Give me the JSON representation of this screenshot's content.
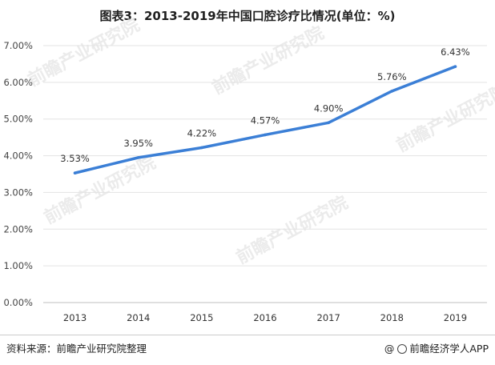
{
  "chart_data": {
    "type": "line",
    "title": "图表3：2013-2019年中国口腔诊疗比情况(单位：%)",
    "categories": [
      "2013",
      "2014",
      "2015",
      "2016",
      "2017",
      "2018",
      "2019"
    ],
    "series": [
      {
        "values": [
          3.53,
          3.95,
          4.22,
          4.57,
          4.9,
          5.76,
          6.43
        ],
        "labels": [
          "3.53%",
          "3.95%",
          "4.22%",
          "4.57%",
          "4.90%",
          "5.76%",
          "6.43%"
        ]
      }
    ],
    "ylim": [
      0,
      7
    ],
    "yticks": [
      "0.00%",
      "1.00%",
      "2.00%",
      "3.00%",
      "4.00%",
      "5.00%",
      "6.00%",
      "7.00%"
    ],
    "grid": true,
    "line_color": "#3b7fd6"
  },
  "footer": {
    "source": "资料来源：前瞻产业研究院整理",
    "brand": "@前瞻经济学人APP"
  },
  "watermark": {
    "text": "前瞻产业研究院"
  }
}
